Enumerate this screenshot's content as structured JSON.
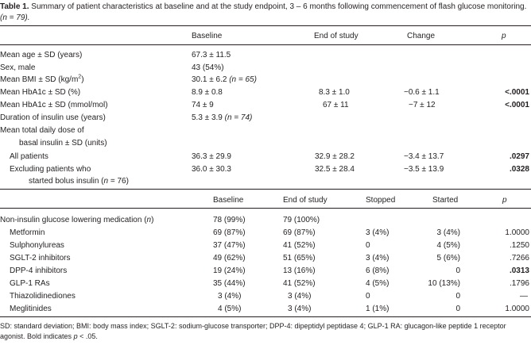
{
  "caption": {
    "label": "Table 1.",
    "text": "Summary of patient characteristics at baseline and at the study endpoint, 3 – 6 months following commencement of flash glucose monitoring.",
    "n_note": "(n = 79)."
  },
  "table1": {
    "headers": {
      "baseline": "Baseline",
      "end": "End of study",
      "change": "Change",
      "p": "p"
    },
    "rows": [
      {
        "label": "Mean age ± SD (years)",
        "baseline": "67.3 ± 11.5",
        "end": "",
        "change": "",
        "p": ""
      },
      {
        "label": "Sex, male",
        "baseline": "43 (54%)",
        "end": "",
        "change": "",
        "p": ""
      },
      {
        "label": "Mean BMI ± SD (kg/m",
        "label_sup": "2",
        "label_tail": ")",
        "baseline": "30.1 ± 6.2",
        "baseline_note": "(n = 65)",
        "end": "",
        "change": "",
        "p": ""
      },
      {
        "label": "Mean HbA1c ± SD (%)",
        "baseline": "8.9 ± 0.8",
        "end": "8.3 ± 1.0",
        "change": "−0.6 ± 1.1",
        "p": "<.0001"
      },
      {
        "label": "Mean HbA1c ± SD (mmol/mol)",
        "baseline": "74 ± 9",
        "end": "67 ± 11",
        "change": "−7 ± 12",
        "p": "<.0001"
      },
      {
        "label": "Duration of insulin use (years)",
        "baseline": "5.3 ± 3.9",
        "baseline_note": "(n = 74)",
        "end": "",
        "change": "",
        "p": ""
      },
      {
        "label": "Mean total daily dose of",
        "baseline": "",
        "end": "",
        "change": "",
        "p": ""
      },
      {
        "label": "basal insulin ± SD (units)",
        "baseline": "",
        "end": "",
        "change": "",
        "p": ""
      },
      {
        "label": "All patients",
        "baseline": "36.3 ± 29.9",
        "end": "32.9 ± 28.2",
        "change": "−3.4 ± 13.7",
        "p": ".0297"
      },
      {
        "label": "Excluding patients who",
        "baseline": "36.0 ± 30.3",
        "end": "32.5 ± 28.4",
        "change": "−3.5 ± 13.9",
        "p": ".0328"
      },
      {
        "label": "started bolus insulin (",
        "label_it": "n",
        "label_tail": " = 76)",
        "baseline": "",
        "end": "",
        "change": "",
        "p": ""
      }
    ]
  },
  "table2": {
    "headers": {
      "baseline": "Baseline",
      "end": "End of study",
      "stopped": "Stopped",
      "started": "Started",
      "p": "p"
    },
    "section_label": "Non-insulin glucose lowering medication (",
    "section_it": "n",
    "section_tail": ")",
    "section_baseline": "78 (99%)",
    "section_end": "79 (100%)",
    "rows": [
      {
        "label": "Metformin",
        "baseline": "69 (87%)",
        "end": "69 (87%)",
        "stopped": "3 (4%)",
        "started": "3 (4%)",
        "p": "1.0000"
      },
      {
        "label": "Sulphonylureas",
        "baseline": "37 (47%)",
        "end": "41 (52%)",
        "stopped": "0",
        "started": "4 (5%)",
        "p": ".1250"
      },
      {
        "label": "SGLT-2 inhibitors",
        "baseline": "49 (62%)",
        "end": "51 (65%)",
        "stopped": "3 (4%)",
        "started": "5 (6%)",
        "p": ".7266"
      },
      {
        "label": "DPP-4 inhibitors",
        "baseline": "19 (24%)",
        "end": "13 (16%)",
        "stopped": "6 (8%)",
        "started": "0",
        "p": ".0313"
      },
      {
        "label": "GLP-1 RAs",
        "baseline": "35 (44%)",
        "end": "41 (52%)",
        "stopped": "4 (5%)",
        "started": "10 (13%)",
        "p": ".1796"
      },
      {
        "label": "Thiazolidinediones",
        "baseline": "3 (4%)",
        "end": "3 (4%)",
        "stopped": "0",
        "started": "0",
        "p": "—"
      },
      {
        "label": "Meglitinides",
        "baseline": "4 (5%)",
        "end": "3 (4%)",
        "stopped": "1 (1%)",
        "started": "0",
        "p": "1.0000"
      }
    ]
  },
  "footnote": {
    "text": "SD: standard deviation; BMI: body mass index; SGLT-2: sodium-glucose transporter; DPP-4: dipeptidyl peptidase 4; GLP-1 RA: glucagon-like peptide 1 receptor agonist. Bold indicates",
    "p_it": "p",
    "tail": "< .05."
  }
}
